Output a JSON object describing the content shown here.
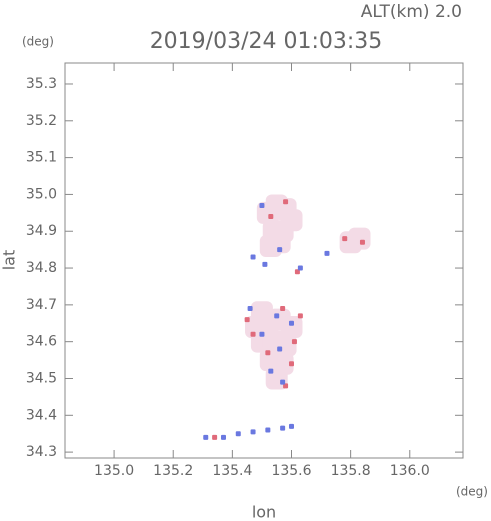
{
  "chart_data": {
    "type": "scatter",
    "annotation": "ALT(km) 2.0",
    "title": "2019/03/24 01:03:35",
    "y_unit": "(deg)",
    "x_unit": "(deg)",
    "xlabel": "lon",
    "ylabel": "lat",
    "xlim": [
      134.834,
      136.18
    ],
    "ylim": [
      34.284,
      35.357
    ],
    "xticks": [
      {
        "value": 135.0,
        "label": "135.0"
      },
      135.2,
      135.4,
      135.6,
      135.8,
      {
        "value": 136.0,
        "label": "136.0"
      }
    ],
    "yticks": [
      34.3,
      34.4,
      34.5,
      34.6,
      34.7,
      34.8,
      34.9,
      {
        "value": 35.0,
        "label": "35.0"
      },
      35.1,
      35.2,
      35.3
    ],
    "series": [
      {
        "color": "#f3dbe6",
        "x": [
          135.52,
          135.55,
          135.58,
          135.6,
          135.54,
          135.57,
          135.53,
          135.56,
          135.5,
          135.48,
          135.52,
          135.56,
          135.6,
          135.5,
          135.54,
          135.58,
          135.53,
          135.57,
          135.55,
          135.8,
          135.83
        ],
        "y": [
          34.95,
          34.97,
          34.96,
          34.93,
          34.9,
          34.9,
          34.86,
          34.87,
          34.68,
          34.64,
          34.65,
          34.66,
          34.64,
          34.6,
          34.6,
          34.59,
          34.55,
          34.54,
          34.5,
          34.87,
          34.88
        ]
      },
      {
        "color": "#e06a7a",
        "x": [
          135.53,
          135.58,
          135.62,
          135.78,
          135.84,
          135.45,
          135.57,
          135.61,
          135.52,
          135.6,
          135.58,
          135.34,
          135.63,
          135.47
        ],
        "y": [
          34.94,
          34.98,
          34.79,
          34.88,
          34.87,
          34.66,
          34.69,
          34.6,
          34.57,
          34.54,
          34.48,
          34.34,
          34.67,
          34.62
        ]
      },
      {
        "color": "#6a78e0",
        "x": [
          135.5,
          135.56,
          135.47,
          135.63,
          135.72,
          135.46,
          135.55,
          135.6,
          135.5,
          135.56,
          135.53,
          135.57,
          135.31,
          135.37,
          135.42,
          135.47,
          135.52,
          135.57,
          135.6,
          135.51
        ],
        "y": [
          34.97,
          34.85,
          34.83,
          34.8,
          34.84,
          34.69,
          34.67,
          34.65,
          34.62,
          34.58,
          34.52,
          34.49,
          34.34,
          34.34,
          34.35,
          34.355,
          34.36,
          34.365,
          34.37,
          34.81
        ]
      }
    ]
  }
}
